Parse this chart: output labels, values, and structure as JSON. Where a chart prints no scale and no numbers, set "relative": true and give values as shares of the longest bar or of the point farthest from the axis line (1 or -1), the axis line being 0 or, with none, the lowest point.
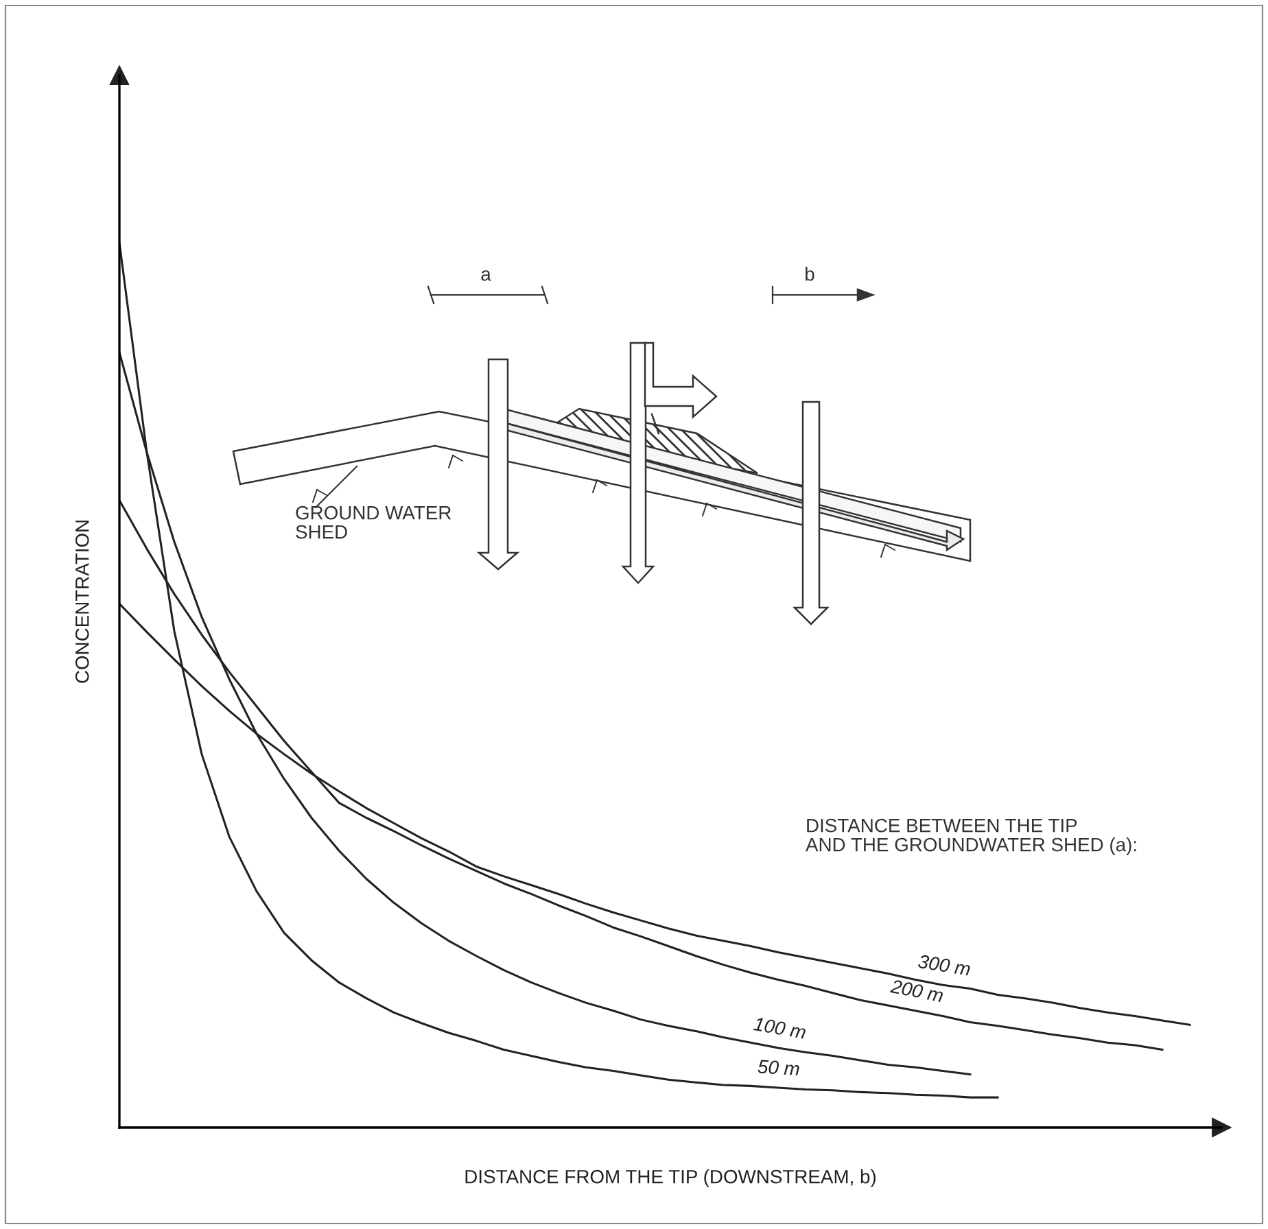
{
  "chart_data": {
    "type": "line",
    "relative": true,
    "tick_labels": false,
    "xlabel": "DISTANCE FROM THE TIP (DOWNSTREAM, b)",
    "ylabel": "CONCENTRATION",
    "categories": [
      null,
      null,
      null,
      null,
      null,
      null,
      null,
      null,
      null,
      null,
      null,
      null,
      null,
      null,
      null,
      null,
      null,
      null,
      null,
      null,
      null,
      null,
      null,
      null,
      null,
      null,
      null,
      null,
      null,
      null,
      null,
      null,
      null,
      null,
      null,
      null,
      null,
      null,
      null,
      null,
      null
    ],
    "series": [
      {
        "name": "50 m",
        "color": "#222222",
        "values": [
          1.0,
          0.763,
          0.561,
          0.422,
          0.329,
          0.267,
          0.22,
          0.189,
          0.164,
          0.146,
          0.13,
          0.118,
          0.107,
          0.098,
          0.088,
          0.081,
          0.074,
          0.068,
          0.064,
          0.059,
          0.054,
          0.051,
          0.048,
          0.047,
          0.045,
          0.043,
          0.042,
          0.04,
          0.039,
          0.037,
          0.036,
          0.034,
          0.034,
          null,
          null,
          null,
          null,
          null,
          null,
          null,
          null
        ]
      },
      {
        "name": "100 m",
        "color": "#222222",
        "values": [
          0.876,
          0.763,
          0.662,
          0.577,
          0.507,
          0.445,
          0.394,
          0.35,
          0.313,
          0.281,
          0.254,
          0.231,
          0.211,
          0.194,
          0.178,
          0.164,
          0.152,
          0.141,
          0.132,
          0.122,
          0.115,
          0.109,
          0.102,
          0.096,
          0.09,
          0.085,
          0.081,
          0.076,
          0.071,
          0.068,
          0.064,
          0.06,
          null,
          null,
          null,
          null,
          null,
          null,
          null,
          null,
          null
        ]
      },
      {
        "name": "200 m",
        "color": "#222222",
        "values": [
          0.709,
          0.654,
          0.603,
          0.557,
          0.515,
          0.476,
          0.437,
          0.402,
          0.367,
          0.35,
          0.335,
          0.319,
          0.304,
          0.29,
          0.276,
          0.264,
          0.251,
          0.239,
          0.226,
          0.216,
          0.205,
          0.194,
          0.184,
          0.175,
          0.167,
          0.16,
          0.152,
          0.144,
          0.138,
          0.132,
          0.126,
          0.119,
          0.115,
          0.11,
          0.105,
          0.101,
          0.096,
          0.093,
          0.088,
          null,
          null
        ]
      },
      {
        "name": "300 m",
        "color": "#222222",
        "values": [
          0.592,
          0.56,
          0.529,
          0.499,
          0.471,
          0.445,
          0.422,
          0.4,
          0.38,
          0.361,
          0.344,
          0.327,
          0.312,
          0.295,
          0.284,
          0.274,
          0.264,
          0.253,
          0.243,
          0.234,
          0.225,
          0.217,
          0.211,
          0.205,
          0.198,
          0.192,
          0.186,
          0.18,
          0.174,
          0.167,
          0.161,
          0.157,
          0.15,
          0.146,
          0.141,
          0.135,
          0.13,
          0.126,
          0.121,
          0.116,
          null
        ]
      }
    ],
    "annotations": [
      "DISTANCE BETWEEN THE TIP\nAND THE GROUNDWATER SHED (a):",
      "GROUND WATER\nSHED",
      "a",
      "b"
    ]
  }
}
